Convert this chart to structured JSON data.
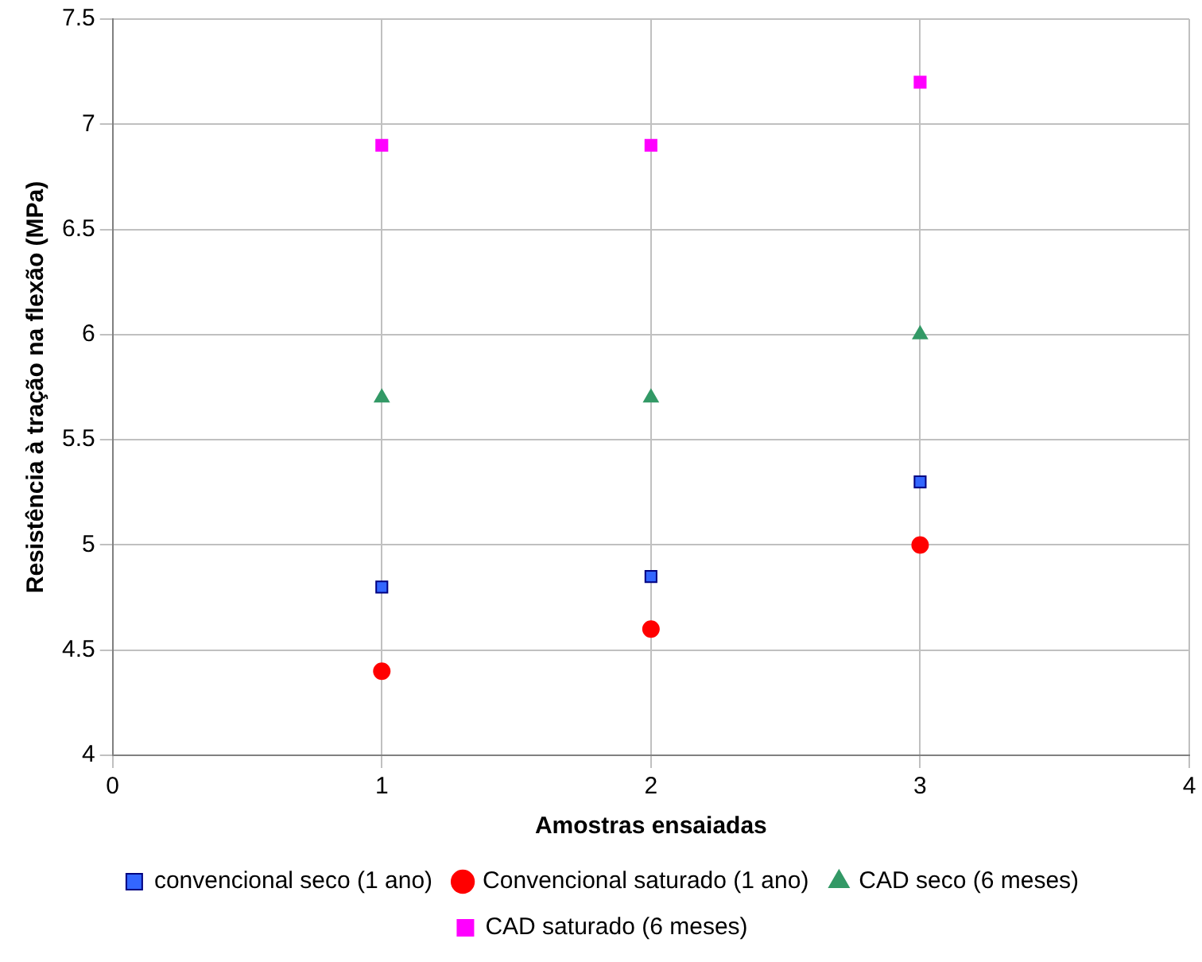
{
  "chart_data": {
    "type": "scatter",
    "xlabel": "Amostras ensaiadas",
    "ylabel": "Resistência à tração na flexão (MPa)",
    "xlim": [
      0,
      4
    ],
    "xticks": [
      0,
      1,
      2,
      3,
      4
    ],
    "ylim": [
      4,
      7.5
    ],
    "yticks": [
      4,
      4.5,
      5,
      5.5,
      6,
      6.5,
      7,
      7.5
    ],
    "grid": true,
    "legend": "bottom",
    "series": [
      {
        "name": "convencional seco (1 ano)",
        "color": "#3366ff",
        "marker": "square",
        "x": [
          1,
          2,
          3
        ],
        "values": [
          4.8,
          4.85,
          5.3
        ]
      },
      {
        "name": "Convencional saturado (1 ano)",
        "color": "#ff0000",
        "marker": "circle",
        "x": [
          1,
          2,
          3
        ],
        "values": [
          4.4,
          4.6,
          5.0
        ]
      },
      {
        "name": "CAD seco (6 meses)",
        "color": "#339966",
        "marker": "triangle",
        "x": [
          1,
          2,
          3
        ],
        "values": [
          5.7,
          5.7,
          6.0
        ]
      },
      {
        "name": "CAD saturado (6 meses)",
        "color": "#ff00ff",
        "marker": "square",
        "x": [
          1,
          2,
          3
        ],
        "values": [
          6.9,
          6.9,
          7.2
        ]
      }
    ]
  }
}
